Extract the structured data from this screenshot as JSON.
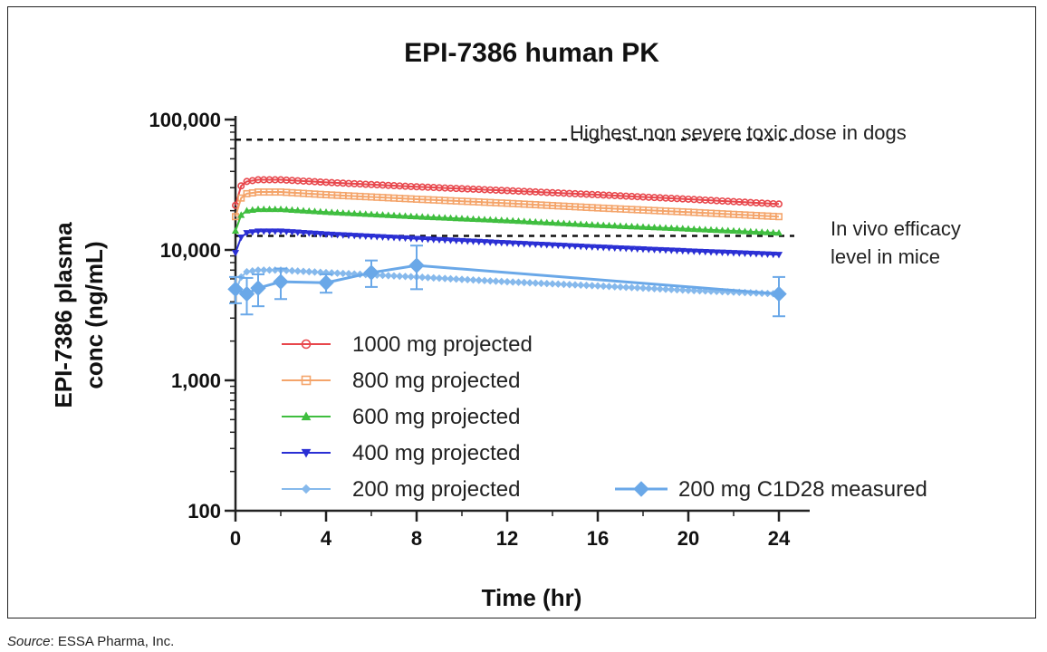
{
  "chart_data": {
    "type": "line",
    "title": "EPI-7386 human PK",
    "xlabel": "Time (hr)",
    "ylabel_line1": "EPI-7386 plasma",
    "ylabel_line2": "conc (ng/mL)",
    "yscale": "log",
    "xlim": [
      0,
      24
    ],
    "ylim": [
      100,
      100000
    ],
    "x_ticks": [
      0,
      4,
      8,
      12,
      16,
      20,
      24
    ],
    "y_ticks": [
      100,
      1000,
      10000,
      100000
    ],
    "y_tick_labels": [
      "100",
      "1,000",
      "10,000",
      "100,000"
    ],
    "reference_lines": [
      {
        "name": "toxic-dose-line",
        "value": 70000,
        "label_lines": [
          "Highest non severe toxic dose in dogs"
        ]
      },
      {
        "name": "efficacy-line",
        "value": 12800,
        "label_lines": [
          "In vivo  efficacy",
          "level in mice"
        ]
      }
    ],
    "series": [
      {
        "name": "1000 mg projected",
        "color": "#e8474c",
        "marker": "circle",
        "x": [
          0,
          0.25,
          0.5,
          1,
          2,
          4,
          8,
          12,
          16,
          20,
          24
        ],
        "values": [
          22000,
          31000,
          33500,
          34500,
          34500,
          33000,
          30500,
          28500,
          26500,
          24500,
          22500
        ]
      },
      {
        "name": "800 mg projected",
        "color": "#f4a46a",
        "marker": "square",
        "x": [
          0,
          0.25,
          0.5,
          1,
          2,
          4,
          8,
          12,
          16,
          20,
          24
        ],
        "values": [
          18000,
          25000,
          27000,
          27800,
          27800,
          26500,
          24500,
          22800,
          21000,
          19500,
          18000
        ]
      },
      {
        "name": "600 mg projected",
        "color": "#3fbe3f",
        "marker": "triangle-up",
        "x": [
          0,
          0.25,
          0.5,
          1,
          2,
          4,
          8,
          12,
          16,
          20,
          24
        ],
        "values": [
          14000,
          18500,
          20000,
          20500,
          20500,
          19500,
          18000,
          16800,
          15500,
          14500,
          13500
        ]
      },
      {
        "name": "400 mg projected",
        "color": "#2a2fd4",
        "marker": "triangle-down",
        "x": [
          0,
          0.25,
          0.5,
          1,
          2,
          4,
          8,
          12,
          16,
          20,
          24
        ],
        "values": [
          9500,
          12500,
          13500,
          13900,
          13900,
          13200,
          12200,
          11300,
          10500,
          9800,
          9200
        ]
      },
      {
        "name": "200 mg projected",
        "color": "#86b9ec",
        "marker": "diamond",
        "x": [
          0,
          0.25,
          0.5,
          1,
          2,
          4,
          8,
          12,
          16,
          20,
          24
        ],
        "values": [
          4800,
          6200,
          6800,
          7000,
          7000,
          6700,
          6200,
          5700,
          5300,
          4900,
          4600
        ]
      }
    ],
    "measured": {
      "name": "200 mg C1D28 measured",
      "color": "#6aa8e8",
      "marker": "diamond",
      "x": [
        0,
        0.5,
        1,
        2,
        4,
        6,
        8,
        24
      ],
      "values": [
        5000,
        4600,
        5100,
        5700,
        5600,
        6700,
        7600,
        4600
      ],
      "err_low": [
        3900,
        3200,
        3700,
        4200,
        4700,
        5200,
        5000,
        3100
      ],
      "err_high": [
        6200,
        6100,
        6500,
        7200,
        6500,
        8300,
        10800,
        6200
      ]
    }
  },
  "source": {
    "label": "Source",
    "text": ": ESSA Pharma, Inc."
  }
}
